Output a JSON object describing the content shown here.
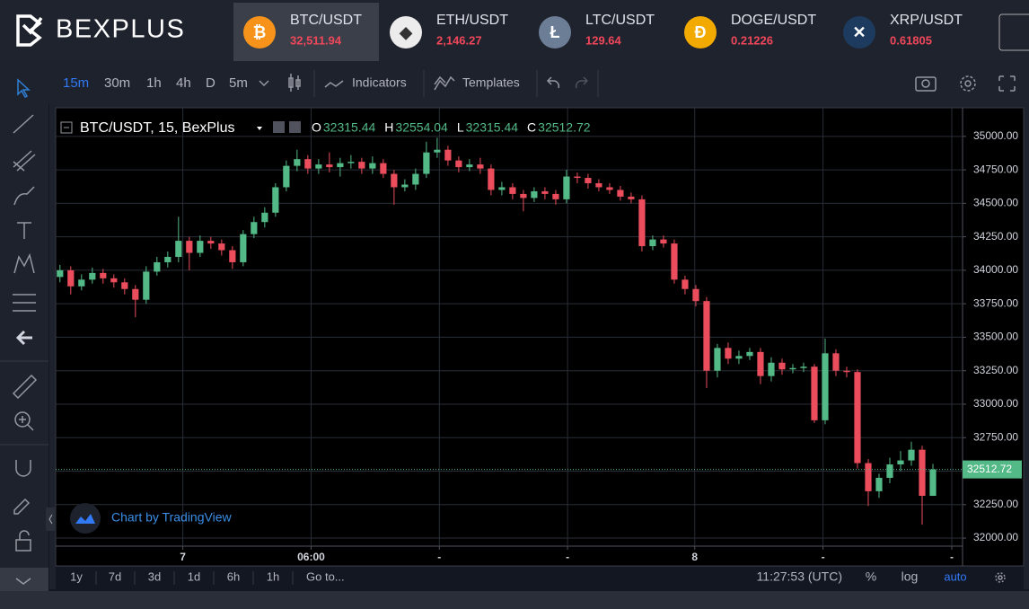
{
  "header": {
    "logo": "BEXPLUS",
    "tickers": [
      {
        "symbol": "BTC/USDT",
        "price": "32,511.94",
        "color": "#f7931a",
        "glyph": "₿"
      },
      {
        "symbol": "ETH/USDT",
        "price": "2,146.27",
        "color": "#ececec",
        "glyph": "◆"
      },
      {
        "symbol": "LTC/USDT",
        "price": "129.64",
        "color": "#6c7d96",
        "glyph": "Ł"
      },
      {
        "symbol": "DOGE/USDT",
        "price": "0.21226",
        "color": "#f2a900",
        "glyph": "Ð"
      },
      {
        "symbol": "XRP/USDT",
        "price": "0.61805",
        "color": "#1d3a5f",
        "glyph": "✕"
      }
    ]
  },
  "toolbar": {
    "intervals": [
      "15m",
      "30m",
      "1h",
      "4h",
      "D",
      "5m"
    ],
    "indicators": "Indicators",
    "templates": "Templates"
  },
  "chart_data": {
    "type": "candlestick",
    "title": "BTC/USDT, 15, BexPlus",
    "ohlc_labels": [
      "O",
      "H",
      "L",
      "C"
    ],
    "up_color": "#53b987",
    "down_color": "#eb4d5c",
    "grid": true,
    "watermark": "Chart by TradingView",
    "open": [
      33950,
      34000,
      33880,
      33930,
      33980,
      33940,
      33910,
      33860,
      33780,
      33990,
      34060,
      34100,
      34220,
      34130,
      34220,
      34200,
      34150,
      34060,
      34270,
      34360,
      34430,
      34620,
      34780,
      34830,
      34760,
      34790,
      34770,
      34800,
      34810,
      34760,
      34800,
      34720,
      34620,
      34640,
      34720,
      34880,
      34900,
      34820,
      34770,
      34790,
      34760,
      34600,
      34620,
      34570,
      34540,
      34590,
      34570,
      34530,
      34700,
      34690,
      34650,
      34620,
      34600,
      34550,
      34530,
      34180,
      34230,
      34200,
      33930,
      33860,
      33770,
      33250,
      33420,
      33340,
      33360,
      33390,
      33210,
      33310,
      33260,
      33270,
      33280,
      32880,
      33380,
      33250,
      33240,
      32560,
      32350,
      32450,
      32550,
      32580,
      32660,
      32315.44
    ],
    "high": [
      34040,
      34030,
      33970,
      34020,
      34010,
      33970,
      33940,
      33890,
      34030,
      34100,
      34140,
      34400,
      34250,
      34260,
      34250,
      34230,
      34180,
      34300,
      34400,
      34470,
      34650,
      34820,
      34900,
      34860,
      34830,
      34880,
      34840,
      34860,
      34840,
      34850,
      34830,
      34750,
      34680,
      34760,
      34960,
      34990,
      34930,
      34850,
      34830,
      34840,
      34790,
      34660,
      34650,
      34600,
      34620,
      34620,
      34600,
      34750,
      34730,
      34720,
      34680,
      34650,
      34630,
      34580,
      34560,
      34260,
      34260,
      34230,
      33960,
      33890,
      33800,
      33450,
      33460,
      33400,
      33420,
      33420,
      33350,
      33340,
      33300,
      33310,
      33300,
      33490,
      33410,
      33280,
      33260,
      32590,
      32480,
      32600,
      32650,
      32720,
      32690,
      32554.04
    ],
    "low": [
      33910,
      33820,
      33850,
      33900,
      33900,
      33870,
      33820,
      33650,
      33750,
      33960,
      34020,
      34060,
      34000,
      34100,
      34160,
      34110,
      34010,
      34030,
      34240,
      34320,
      34400,
      34590,
      34740,
      34720,
      34720,
      34730,
      34700,
      34760,
      34720,
      34720,
      34690,
      34490,
      34590,
      34600,
      34690,
      34840,
      34780,
      34730,
      34740,
      34720,
      34560,
      34560,
      34530,
      34440,
      34510,
      34530,
      34490,
      34500,
      34650,
      34610,
      34590,
      34570,
      34520,
      34500,
      34140,
      34150,
      34170,
      33900,
      33820,
      33730,
      33120,
      33200,
      33300,
      33300,
      33330,
      33150,
      33170,
      33220,
      33230,
      33240,
      32860,
      32850,
      33210,
      33200,
      32520,
      32240,
      32300,
      32410,
      32500,
      32540,
      32100,
      32315.44
    ],
    "close": [
      34000,
      33880,
      33930,
      33980,
      33940,
      33910,
      33860,
      33780,
      33990,
      34060,
      34100,
      34220,
      34130,
      34220,
      34200,
      34150,
      34060,
      34270,
      34360,
      34430,
      34620,
      34780,
      34830,
      34760,
      34790,
      34770,
      34800,
      34810,
      34760,
      34800,
      34720,
      34620,
      34640,
      34720,
      34880,
      34900,
      34820,
      34770,
      34790,
      34760,
      34600,
      34620,
      34570,
      34540,
      34590,
      34570,
      34530,
      34700,
      34690,
      34650,
      34620,
      34600,
      34550,
      34530,
      34180,
      34230,
      34200,
      33930,
      33860,
      33770,
      33250,
      33420,
      33340,
      33360,
      33390,
      33210,
      33310,
      33260,
      33270,
      33280,
      32880,
      33380,
      33250,
      33240,
      32560,
      32350,
      32450,
      32550,
      32580,
      32660,
      32315.44,
      32512.72
    ],
    "xlim": [
      -0.4,
      83.75
    ],
    "ylim": [
      31940,
      35200
    ],
    "yticks": [
      {
        "value": 32000,
        "label": "32000.00"
      },
      {
        "value": 32250,
        "label": "32250.00"
      },
      {
        "value": 32500,
        "label": "32500.00"
      },
      {
        "value": 32750,
        "label": "32750.00"
      },
      {
        "value": 33000,
        "label": "33000.00"
      },
      {
        "value": 33250,
        "label": "33250.00"
      },
      {
        "value": 33500,
        "label": "33500.00"
      },
      {
        "value": 33750,
        "label": "33750.00"
      },
      {
        "value": 34000,
        "label": "34000.00"
      },
      {
        "value": 34250,
        "label": "34250.00"
      },
      {
        "value": 34500,
        "label": "34500.00"
      },
      {
        "value": 34750,
        "label": "34750.00"
      },
      {
        "value": 35000,
        "label": "35000.00"
      }
    ],
    "xticks": [
      {
        "value": 11.4,
        "label": "7"
      },
      {
        "value": 23.3,
        "label": "06:00"
      },
      {
        "value": 35.2,
        "label": "-"
      },
      {
        "value": 47.1,
        "label": "-"
      },
      {
        "value": 58.9,
        "label": "8"
      },
      {
        "value": 70.8,
        "label": "-"
      },
      {
        "value": 82.75,
        "label": "-"
      }
    ]
  },
  "footer": {
    "ranges": [
      "1y",
      "7d",
      "3d",
      "1d",
      "6h",
      "1h"
    ],
    "goto": "Go to...",
    "clock": "11:27:53 (UTC)",
    "percent": "%",
    "log": "log",
    "auto": "auto"
  }
}
